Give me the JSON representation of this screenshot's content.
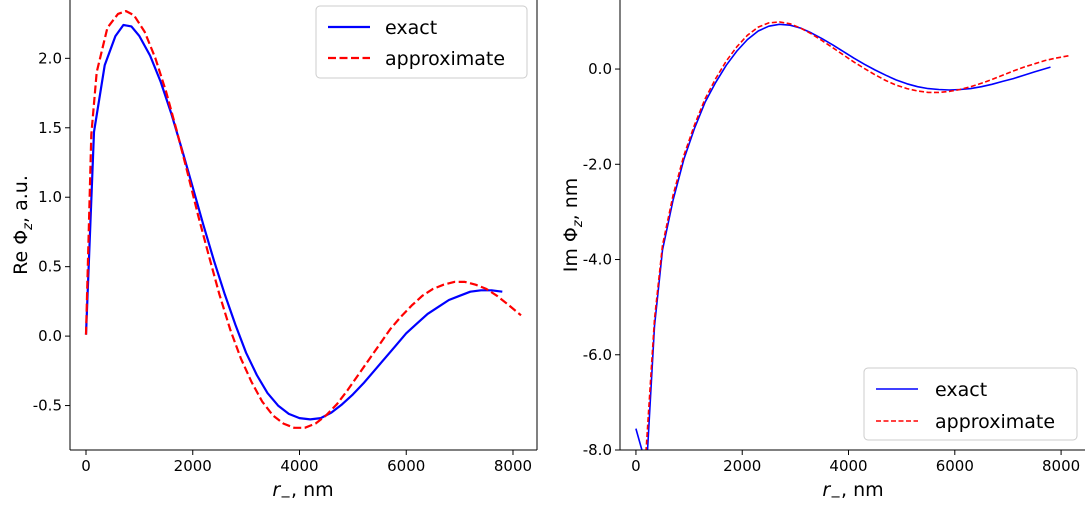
{
  "chart_data": [
    {
      "type": "line",
      "xlabel_var": "r",
      "xlabel_sub": "−",
      "xlabel_unit": ", nm",
      "ylabel_pre": "Re Φ",
      "ylabel_sub": "z",
      "ylabel_unit": ", a.u.",
      "xlim": [
        -300,
        8450
      ],
      "ylim": [
        -0.82,
        2.42
      ],
      "xticks": [
        0,
        2000,
        4000,
        6000,
        8000
      ],
      "xtick_labels": [
        "0",
        "2000",
        "4000",
        "6000",
        "8000"
      ],
      "yticks": [
        -0.5,
        0.0,
        0.5,
        1.0,
        1.5,
        2.0
      ],
      "ytick_labels": [
        "-0.5",
        "0.0",
        "0.5",
        "1.0",
        "1.5",
        "2.0"
      ],
      "legend_position": "top-right",
      "grid": false,
      "series": [
        {
          "name": "exact",
          "color": "#0000ff",
          "dash": "solid",
          "x": [
            0,
            150,
            350,
            550,
            700,
            850,
            1000,
            1200,
            1400,
            1600,
            1800,
            2000,
            2200,
            2400,
            2600,
            2800,
            3000,
            3200,
            3400,
            3600,
            3800,
            4000,
            4200,
            4400,
            4600,
            4800,
            5000,
            5200,
            5400,
            5600,
            5800,
            6000,
            6200,
            6400,
            6600,
            6800,
            7000,
            7200,
            7400,
            7600,
            7800
          ],
          "y": [
            0.01,
            1.47,
            1.95,
            2.16,
            2.24,
            2.23,
            2.16,
            2.02,
            1.83,
            1.6,
            1.34,
            1.07,
            0.8,
            0.54,
            0.3,
            0.08,
            -0.12,
            -0.28,
            -0.41,
            -0.5,
            -0.56,
            -0.59,
            -0.6,
            -0.59,
            -0.55,
            -0.49,
            -0.42,
            -0.34,
            -0.25,
            -0.16,
            -0.07,
            0.02,
            0.09,
            0.16,
            0.21,
            0.26,
            0.29,
            0.32,
            0.33,
            0.33,
            0.32
          ]
        },
        {
          "name": "approximate",
          "color": "#ff0000",
          "dash": "dashed",
          "x": [
            0,
            100,
            200,
            400,
            600,
            750,
            900,
            1100,
            1300,
            1500,
            1700,
            1900,
            2100,
            2300,
            2500,
            2700,
            2900,
            3100,
            3300,
            3500,
            3700,
            3900,
            4100,
            4300,
            4500,
            4700,
            4900,
            5100,
            5300,
            5500,
            5700,
            5900,
            6100,
            6300,
            6500,
            6700,
            6900,
            7100,
            7300,
            7500,
            7700,
            7900,
            8150
          ],
          "y": [
            0.01,
            1.45,
            1.9,
            2.22,
            2.32,
            2.34,
            2.31,
            2.19,
            2.0,
            1.76,
            1.48,
            1.18,
            0.87,
            0.58,
            0.3,
            0.05,
            -0.16,
            -0.33,
            -0.47,
            -0.57,
            -0.63,
            -0.66,
            -0.66,
            -0.63,
            -0.57,
            -0.49,
            -0.39,
            -0.28,
            -0.17,
            -0.06,
            0.05,
            0.14,
            0.22,
            0.29,
            0.34,
            0.37,
            0.39,
            0.39,
            0.37,
            0.34,
            0.29,
            0.23,
            0.15
          ]
        }
      ]
    },
    {
      "type": "line",
      "xlabel_var": "r",
      "xlabel_sub": "−",
      "xlabel_unit": ", nm",
      "ylabel_pre": "Im Φ",
      "ylabel_sub": "z",
      "ylabel_unit": ", nm",
      "xlim": [
        -300,
        8450
      ],
      "ylim": [
        -8.0,
        1.45
      ],
      "xticks": [
        0,
        2000,
        4000,
        6000,
        8000
      ],
      "xtick_labels": [
        "0",
        "2000",
        "4000",
        "6000",
        "8000"
      ],
      "yticks": [
        -8.0,
        -6.0,
        -4.0,
        -2.0,
        0.0
      ],
      "ytick_labels": [
        "-8.0",
        "-6.0",
        "-4.0",
        "-2.0",
        "0.0"
      ],
      "legend_position": "bottom-right",
      "grid": false,
      "series": [
        {
          "name": "exact",
          "color": "#0000ff",
          "dash": "solid",
          "x": [
            0,
            200,
            350,
            500,
            700,
            900,
            1100,
            1300,
            1500,
            1700,
            1900,
            2100,
            2300,
            2500,
            2700,
            2900,
            3100,
            3300,
            3500,
            3700,
            3900,
            4100,
            4300,
            4500,
            4700,
            4900,
            5100,
            5300,
            5500,
            5700,
            5900,
            6100,
            6300,
            6500,
            6700,
            6900,
            7100,
            7300,
            7500,
            7800
          ],
          "y": [
            -7.55,
            -8.35,
            -5.4,
            -3.8,
            -2.75,
            -1.9,
            -1.25,
            -0.7,
            -0.28,
            0.08,
            0.38,
            0.62,
            0.8,
            0.9,
            0.94,
            0.92,
            0.86,
            0.76,
            0.64,
            0.51,
            0.37,
            0.23,
            0.1,
            -0.02,
            -0.13,
            -0.23,
            -0.31,
            -0.37,
            -0.41,
            -0.43,
            -0.44,
            -0.43,
            -0.41,
            -0.37,
            -0.32,
            -0.26,
            -0.2,
            -0.13,
            -0.06,
            0.04
          ]
        },
        {
          "name": "approximate",
          "color": "#ff0000",
          "dash": "dashed",
          "x": [
            180,
            350,
            500,
            700,
            900,
            1100,
            1300,
            1500,
            1700,
            1900,
            2100,
            2300,
            2500,
            2700,
            2900,
            3100,
            3300,
            3500,
            3700,
            3900,
            4100,
            4300,
            4500,
            4700,
            4900,
            5100,
            5300,
            5500,
            5700,
            5900,
            6100,
            6300,
            6500,
            6700,
            6900,
            7100,
            7300,
            7500,
            7700,
            7900,
            8150
          ],
          "y": [
            -8.2,
            -5.25,
            -3.7,
            -2.65,
            -1.82,
            -1.18,
            -0.63,
            -0.2,
            0.17,
            0.47,
            0.71,
            0.88,
            0.97,
            0.99,
            0.95,
            0.86,
            0.74,
            0.6,
            0.45,
            0.3,
            0.15,
            0.01,
            -0.12,
            -0.24,
            -0.34,
            -0.41,
            -0.46,
            -0.49,
            -0.49,
            -0.47,
            -0.43,
            -0.37,
            -0.3,
            -0.22,
            -0.13,
            -0.04,
            0.04,
            0.11,
            0.18,
            0.23,
            0.28
          ]
        }
      ]
    }
  ]
}
